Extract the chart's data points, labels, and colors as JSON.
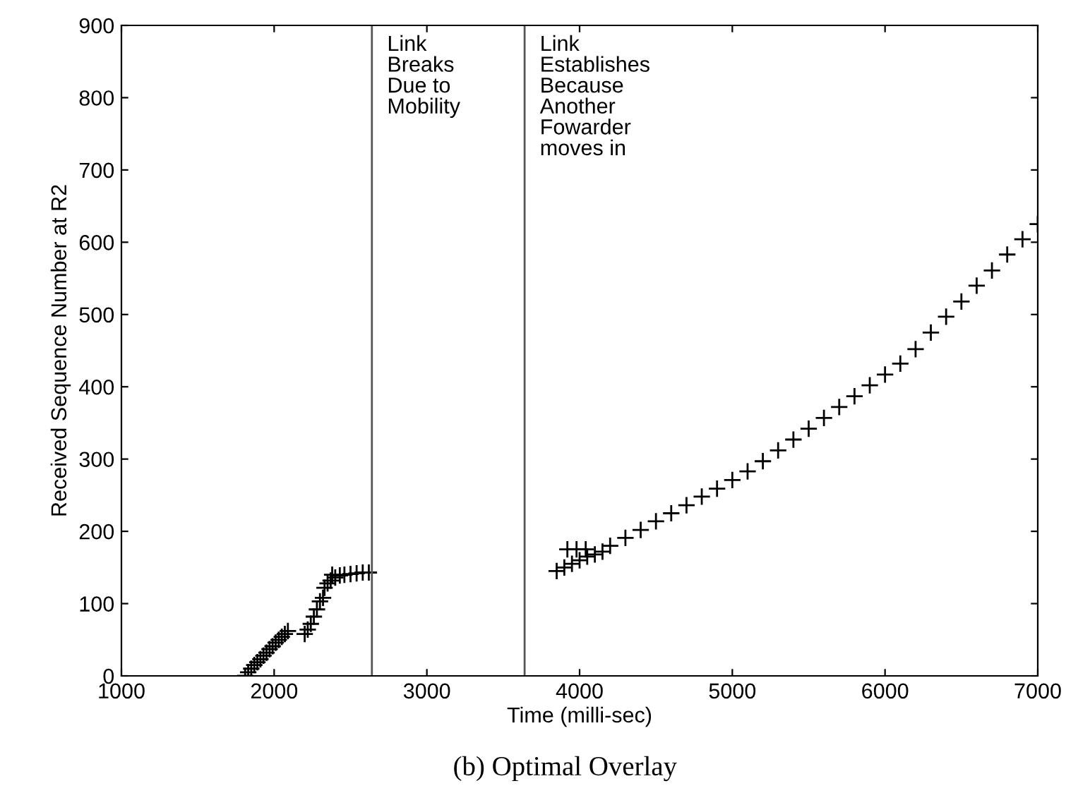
{
  "chart_data": {
    "type": "scatter",
    "xlabel": "Time (milli-sec)",
    "ylabel": "Received Sequence Number at R2",
    "marker": "cross",
    "grid": false,
    "legend": false,
    "xlim": [
      1000,
      7000
    ],
    "ylim": [
      0,
      900
    ],
    "xticks": [
      1000,
      2000,
      3000,
      4000,
      5000,
      6000,
      7000
    ],
    "yticks": [
      0,
      100,
      200,
      300,
      400,
      500,
      600,
      700,
      800,
      900
    ],
    "series": [
      {
        "color": "#000000",
        "x": [
          1810,
          1830,
          1850,
          1870,
          1890,
          1910,
          1930,
          1950,
          1970,
          1990,
          2010,
          2030,
          2050,
          2070,
          2090,
          2200,
          2220,
          2240,
          2260,
          2280,
          2300,
          2320,
          2330,
          2350,
          2370,
          2380,
          2400,
          2430,
          2460,
          2500,
          2540,
          2580,
          2620,
          3850,
          3900,
          3920,
          3950,
          3980,
          4000,
          4040,
          4050,
          4100,
          4150,
          4200,
          4300,
          4400,
          4500,
          4600,
          4700,
          4800,
          4900,
          5000,
          5100,
          5200,
          5300,
          5400,
          5500,
          5600,
          5700,
          5800,
          5900,
          6000,
          6100,
          6200,
          6300,
          6400,
          6500,
          6600,
          6700,
          6800,
          6900,
          7000
        ],
        "values": [
          0,
          5,
          10,
          15,
          19,
          23,
          28,
          32,
          37,
          41,
          46,
          50,
          54,
          58,
          62,
          58,
          64,
          72,
          82,
          92,
          103,
          108,
          122,
          128,
          132,
          140,
          136,
          139,
          140,
          141,
          142,
          143,
          143,
          145,
          150,
          175,
          155,
          175,
          160,
          175,
          165,
          168,
          172,
          180,
          191,
          202,
          214,
          225,
          236,
          248,
          259,
          271,
          283,
          297,
          312,
          327,
          342,
          357,
          372,
          387,
          402,
          417,
          432,
          452,
          475,
          497,
          518,
          540,
          561,
          583,
          604,
          625
        ]
      }
    ],
    "ref_lines": [
      {
        "axis": "x",
        "value": 2640,
        "label": "Link\nBreaks\nDue to\nMobility",
        "color": "#555555"
      },
      {
        "axis": "x",
        "value": 3640,
        "label": "Link\nEstablishes\nBecause\nAnother\nFowarder\nmoves in",
        "color": "#555555"
      }
    ],
    "annotations": [
      "(b) Optimal Overlay"
    ]
  }
}
